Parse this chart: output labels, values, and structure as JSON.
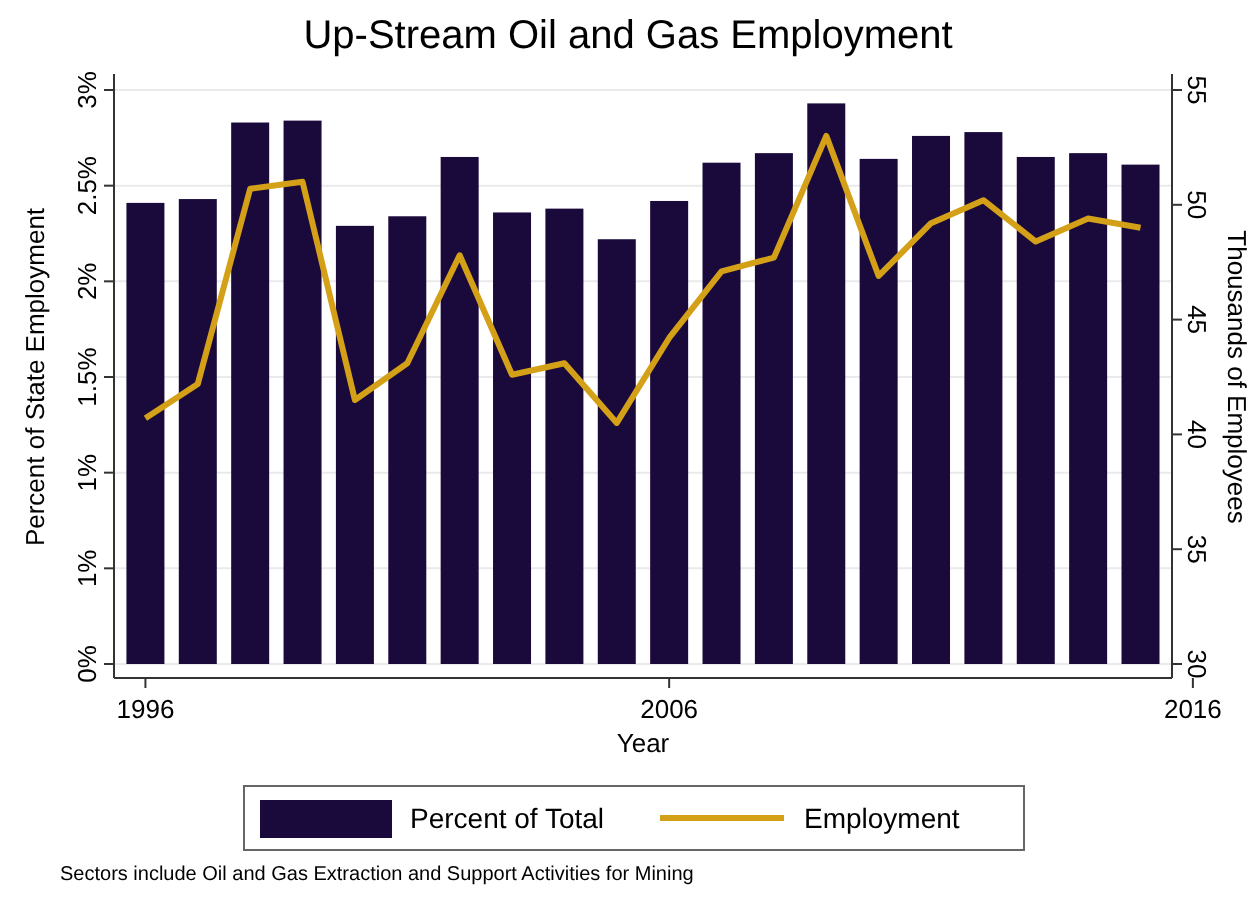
{
  "chart_data": {
    "type": "bar",
    "title": "Up-Stream Oil and Gas Employment",
    "xlabel": "Year",
    "ylabel": "Percent of State Employment",
    "y2label": "Thousands of Employees",
    "x": [
      1996,
      1997,
      1998,
      1999,
      2000,
      2001,
      2002,
      2003,
      2004,
      2005,
      2006,
      2007,
      2008,
      2009,
      2010,
      2011,
      2012,
      2013,
      2014,
      2015
    ],
    "series": [
      {
        "name": "Percent of Total",
        "color": "#1a0a3c",
        "values": [
          2.41,
          2.43,
          2.83,
          2.84,
          2.29,
          2.34,
          2.65,
          2.36,
          2.38,
          2.22,
          2.42,
          2.62,
          2.67,
          2.93,
          2.64,
          2.76,
          2.78,
          2.65,
          2.67,
          2.61
        ]
      },
      {
        "name": "Employment",
        "type": "line",
        "axis": "y2",
        "color": "#d4a017",
        "values": [
          40.7,
          42.2,
          50.7,
          51.0,
          41.5,
          43.1,
          47.8,
          42.6,
          43.1,
          40.5,
          44.2,
          47.1,
          47.7,
          53.0,
          46.9,
          49.2,
          50.2,
          48.4,
          49.4,
          49.0
        ]
      }
    ],
    "xlim": [
      1995.4,
      2016
    ],
    "xticks": [
      1996,
      2006,
      2016
    ],
    "ylim": [
      0,
      3
    ],
    "yticks": [
      {
        "value": 0,
        "label": "0%"
      },
      {
        "value": 0.5,
        "label": "1%"
      },
      {
        "value": 1,
        "label": "1%"
      },
      {
        "value": 1.5,
        "label": "1.5%"
      },
      {
        "value": 2,
        "label": "2%"
      },
      {
        "value": 2.5,
        "label": "2.5%"
      },
      {
        "value": 3,
        "label": "3%"
      }
    ],
    "y2lim": [
      30,
      55
    ],
    "y2ticks": [
      30,
      35,
      40,
      45,
      50,
      55
    ],
    "grid": "y",
    "legend": "bottom",
    "marker": "none",
    "line_style": "solid",
    "annotations": [
      "Sectors include Oil and Gas Extraction and Support Activities for Mining"
    ]
  }
}
